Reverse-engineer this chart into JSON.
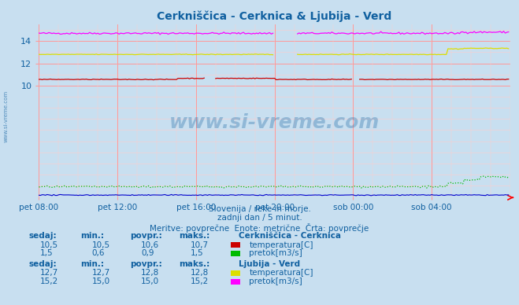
{
  "title": "Cerkniščica - Cerknica & Ljubija - Verd",
  "title_color": "#1060a0",
  "bg_color": "#c8dff0",
  "plot_bg_color": "#c8dff0",
  "grid_color_major": "#ff9999",
  "grid_color_minor": "#ffcccc",
  "xlabel_color": "#1060a0",
  "ylabel_color": "#1060a0",
  "yticks": [
    10,
    12,
    14
  ],
  "ylim": [
    0,
    15.5
  ],
  "xlim": [
    0,
    288
  ],
  "xtick_labels": [
    "pet 08:00",
    "pet 12:00",
    "pet 16:00",
    "pet 20:00",
    "sob 00:00",
    "sob 04:00"
  ],
  "xtick_positions": [
    0,
    48,
    96,
    144,
    192,
    240
  ],
  "watermark": "www.si-vreme.com",
  "watermark_color": "#1060a0",
  "subtitle1": "Slovenija / reke in morje.",
  "subtitle2": "zadnji dan / 5 minut.",
  "subtitle3": "Meritve: povprečne  Enote: metrične  Črta: povprečje",
  "subtitle_color": "#1060a0",
  "line_cerknica_temp_color": "#cc0000",
  "line_cerknica_flow_color": "#00bb00",
  "line_ljubija_temp_color": "#dddd00",
  "line_ljubija_flow_color": "#ff00ff",
  "line_blue_color": "#0000cc",
  "table_header_color": "#1060a0",
  "table_value_color": "#1060a0",
  "station1_name": "Cerkniščica - Cerknica",
  "station2_name": "Ljubija - Verd",
  "s1_sedaj": "10,5",
  "s1_min": "10,5",
  "s1_povpr": "10,6",
  "s1_maks": "10,7",
  "s1_sedaj2": "1,5",
  "s1_min2": "0,6",
  "s1_povpr2": "0,9",
  "s1_maks2": "1,5",
  "s2_sedaj": "12,7",
  "s2_min": "12,7",
  "s2_povpr": "12,8",
  "s2_maks": "12,8",
  "s2_sedaj2": "15,2",
  "s2_min2": "15,0",
  "s2_povpr2": "15,0",
  "s2_maks2": "15,2",
  "label_temp1": "temperatura[C]",
  "label_flow1": "pretok[m3/s]",
  "label_temp2": "temperatura[C]",
  "label_flow2": "pretok[m3/s]"
}
